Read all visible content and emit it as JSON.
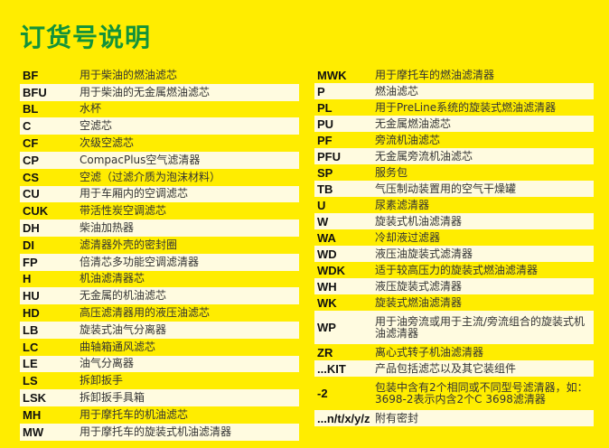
{
  "title": "订货号说明",
  "left": [
    {
      "code": "BF",
      "desc": "用于柴油的燃油滤芯"
    },
    {
      "code": "BFU",
      "desc": "用于柴油的无金属燃油滤芯"
    },
    {
      "code": "BL",
      "desc": "水杯"
    },
    {
      "code": "C",
      "desc": "空滤芯"
    },
    {
      "code": "CF",
      "desc": "次级空滤芯"
    },
    {
      "code": "CP",
      "desc": "CompacPlus空气滤清器"
    },
    {
      "code": "CS",
      "desc": "空滤（过滤介质为泡沫材料）"
    },
    {
      "code": "CU",
      "desc": "用于车厢内的空调滤芯"
    },
    {
      "code": "CUK",
      "desc": "带活性炭空调滤芯"
    },
    {
      "code": "DH",
      "desc": "柴油加热器"
    },
    {
      "code": "DI",
      "desc": "滤清器外壳的密封圈"
    },
    {
      "code": "FP",
      "desc": "倍清芯多功能空调滤清器"
    },
    {
      "code": "H",
      "desc": "机油滤清器芯"
    },
    {
      "code": "HU",
      "desc": "无金属的机油滤芯"
    },
    {
      "code": "HD",
      "desc": "高压滤清器用的液压油滤芯"
    },
    {
      "code": "LB",
      "desc": "旋装式油气分离器"
    },
    {
      "code": "LC",
      "desc": "曲轴箱通风滤芯"
    },
    {
      "code": "LE",
      "desc": "油气分离器"
    },
    {
      "code": "LS",
      "desc": "拆卸扳手"
    },
    {
      "code": "LSK",
      "desc": "拆卸扳手具箱"
    },
    {
      "code": "MH",
      "desc": "用于摩托车的机油滤芯"
    },
    {
      "code": "MW",
      "desc": "用于摩托车的旋装式机油滤清器"
    }
  ],
  "right": [
    {
      "code": "MWK",
      "desc": "用于摩托车的燃油滤清器"
    },
    {
      "code": "P",
      "desc": "燃油滤芯"
    },
    {
      "code": "PL",
      "desc": "用于PreLine系统的旋装式燃油滤清器"
    },
    {
      "code": "PU",
      "desc": "无金属燃油滤芯"
    },
    {
      "code": "PF",
      "desc": "旁流机油滤芯"
    },
    {
      "code": "PFU",
      "desc": "无金属旁流机油滤芯"
    },
    {
      "code": "SP",
      "desc": "服务包"
    },
    {
      "code": "TB",
      "desc": "气压制动装置用的空气干燥罐"
    },
    {
      "code": "U",
      "desc": "尿素滤清器"
    },
    {
      "code": "W",
      "desc": "旋装式机油滤清器"
    },
    {
      "code": "WA",
      "desc": "冷却液过滤器"
    },
    {
      "code": "WD",
      "desc": "液压油旋装式滤清器"
    },
    {
      "code": "WDK",
      "desc": "适于较高压力的旋装式燃油滤清器"
    },
    {
      "code": "WH",
      "desc": "液压旋装式滤清器"
    },
    {
      "code": "WK",
      "desc": "旋装式燃油滤清器"
    },
    {
      "code": "WP",
      "desc": "用于油旁流或用于主流/旁流组合的旋装式机油滤清器"
    },
    {
      "code": "ZR",
      "desc": "离心式转子机油滤清器"
    },
    {
      "code": "...KIT",
      "desc": "产品包括滤芯以及其它装组件"
    },
    {
      "code": "-2",
      "desc": "包装中含有2个相同或不同型号滤清器，如：3698-2表示内含2个C 3698滤清器"
    },
    {
      "code": "...n/t/x/y/z",
      "desc": "附有密封"
    }
  ]
}
